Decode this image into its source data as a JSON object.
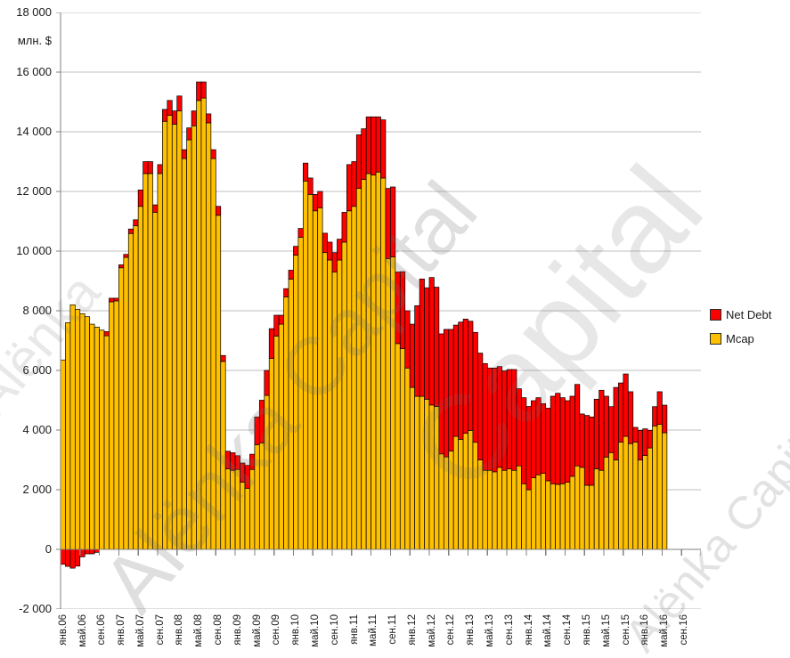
{
  "watermark": {
    "full": "Alёnka Capital",
    "word_first": "Alёnka",
    "word_second": "Capital"
  },
  "y_axis": {
    "unit_label": "млн. $",
    "max": 18000,
    "min": -2000,
    "step": 2000,
    "tick_labels": [
      "18 000",
      "16 000",
      "14 000",
      "12 000",
      "10 000",
      "8 000",
      "6 000",
      "4 000",
      "2 000",
      "0",
      "-2 000"
    ]
  },
  "x_axis": {
    "tick_labels": [
      "янв.06",
      "май.06",
      "сен.06",
      "янв.07",
      "май.07",
      "сен.07",
      "янв.08",
      "май.08",
      "сен.08",
      "янв.09",
      "май.09",
      "сен.09",
      "янв.10",
      "май.10",
      "сен.10",
      "янв.11",
      "май.11",
      "сен.11",
      "янв.12",
      "май.12",
      "сен.12",
      "янв.13",
      "май.13",
      "сен.13",
      "янв.14",
      "май.14",
      "сен.14",
      "янв.15",
      "май.15",
      "сен.15",
      "янв.16",
      "май.16",
      "сен.16"
    ]
  },
  "legend": {
    "items": [
      {
        "label": "Net Debt",
        "color": "#FF0000"
      },
      {
        "label": "Mcap",
        "color": "#FFC000"
      }
    ]
  },
  "colors": {
    "mcap": "#FFC000",
    "net_debt": "#FF0000",
    "bar_border": "#000000",
    "gridline": "#BFBFBF",
    "axis": "#808080"
  },
  "chart_data": {
    "type": "bar",
    "stacked": true,
    "title": "",
    "xlabel": "",
    "ylabel": "млн. $",
    "ylim": [
      -2000,
      18000
    ],
    "grid": true,
    "legend_position": "right",
    "months_start": "янв.06",
    "months_end": "май.16",
    "axis_months_total": 132,
    "bar_months_total": 125,
    "series": [
      {
        "name": "Mcap",
        "color": "#FFC000",
        "values": [
          6350,
          7600,
          8200,
          8050,
          7900,
          7800,
          7550,
          7450,
          7350,
          7160,
          8300,
          8330,
          9440,
          9790,
          10590,
          10850,
          11500,
          12600,
          12600,
          11300,
          12600,
          14350,
          14550,
          14250,
          14700,
          13100,
          13730,
          14200,
          15050,
          15130,
          14300,
          13100,
          11200,
          6300,
          2700,
          2650,
          2680,
          2250,
          2050,
          2680,
          3510,
          3570,
          5160,
          6400,
          7150,
          7550,
          8460,
          9060,
          9860,
          10460,
          12350,
          11900,
          11350,
          11450,
          9950,
          9700,
          9300,
          9700,
          10300,
          11350,
          11500,
          12100,
          12400,
          12600,
          12550,
          12650,
          12450,
          9750,
          9800,
          6900,
          6730,
          6080,
          5430,
          5130,
          5130,
          5035,
          4840,
          4790,
          3200,
          3100,
          3295,
          3790,
          3690,
          3890,
          3990,
          3590,
          3000,
          2650,
          2650,
          2600,
          2750,
          2650,
          2700,
          2650,
          2800,
          2200,
          2000,
          2400,
          2500,
          2550,
          2300,
          2200,
          2180,
          2200,
          2250,
          2450,
          2800,
          2750,
          2150,
          2150,
          2700,
          2650,
          3095,
          3245,
          2995,
          3595,
          3790,
          3545,
          3595,
          2995,
          3145,
          3400,
          4140,
          4190,
          3910
        ]
      },
      {
        "name": "Net Debt",
        "color": "#FF0000",
        "values": [
          -500,
          -570,
          -630,
          -560,
          -250,
          -150,
          -150,
          -100,
          0,
          140,
          120,
          90,
          100,
          100,
          150,
          200,
          550,
          400,
          400,
          250,
          300,
          400,
          500,
          450,
          500,
          300,
          400,
          500,
          620,
          540,
          300,
          300,
          300,
          200,
          590,
          590,
          460,
          645,
          765,
          510,
          930,
          1430,
          840,
          1000,
          700,
          300,
          280,
          300,
          300,
          300,
          600,
          550,
          550,
          550,
          650,
          600,
          650,
          700,
          1000,
          1550,
          1500,
          1800,
          1700,
          1900,
          1950,
          1850,
          1950,
          2350,
          2350,
          2400,
          2580,
          1920,
          2120,
          3040,
          3935,
          3735,
          4275,
          4000,
          4025,
          4275,
          4080,
          3730,
          3930,
          3830,
          3660,
          3685,
          3580,
          3580,
          3430,
          3480,
          3380,
          3330,
          3330,
          3380,
          2585,
          2885,
          2790,
          2585,
          2585,
          2335,
          2435,
          2935,
          3055,
          2885,
          2735,
          2685,
          2730,
          1790,
          2340,
          2290,
          2335,
          2685,
          2040,
          1540,
          2435,
          1985,
          2090,
          1740,
          495,
          995,
          895,
          590,
          645,
          1095,
          925
        ]
      }
    ]
  }
}
